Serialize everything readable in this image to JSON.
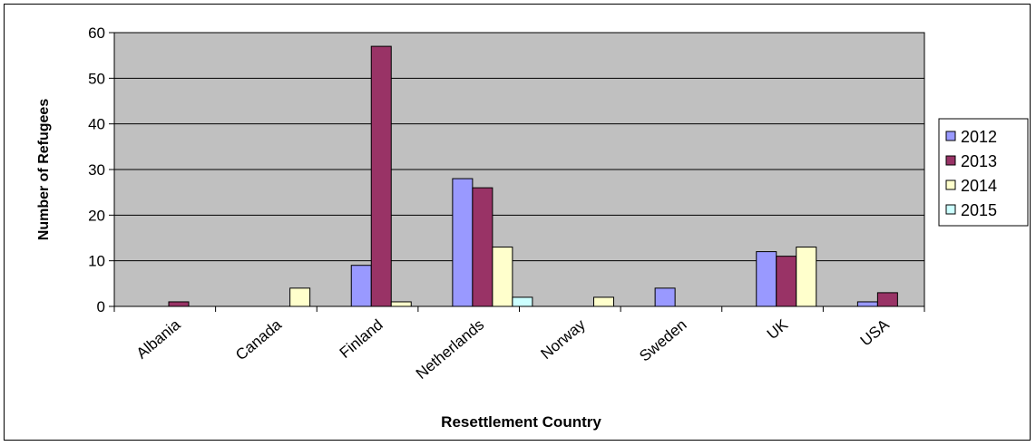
{
  "chart_data": {
    "type": "bar",
    "categories": [
      "Albania",
      "Canada",
      "Finland",
      "Netherlands",
      "Norway",
      "Sweden",
      "UK",
      "USA"
    ],
    "series": [
      {
        "name": "2012",
        "color": "#9999FF",
        "values": [
          0,
          0,
          9,
          28,
          0,
          4,
          12,
          1
        ]
      },
      {
        "name": "2013",
        "color": "#993366",
        "values": [
          1,
          0,
          57,
          26,
          0,
          0,
          11,
          3
        ]
      },
      {
        "name": "2014",
        "color": "#FFFFCC",
        "values": [
          0,
          4,
          1,
          13,
          2,
          0,
          13,
          0
        ]
      },
      {
        "name": "2015",
        "color": "#CCFFFF",
        "values": [
          0,
          0,
          0,
          2,
          0,
          0,
          0,
          0
        ]
      }
    ],
    "xlabel": "Resettlement Country",
    "ylabel": "Number of Refugees",
    "ylim": [
      0,
      60
    ],
    "yticks": [
      0,
      10,
      20,
      30,
      40,
      50,
      60
    ],
    "grid": true,
    "legend": "right",
    "plot_background": "#C0C0C0"
  }
}
